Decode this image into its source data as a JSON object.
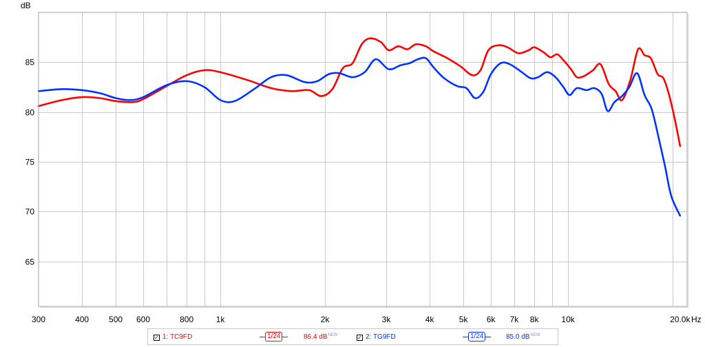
{
  "chart_data": {
    "type": "line",
    "ylabel": "dB",
    "x_unit_label": "Hz",
    "x_scale": "log",
    "xlim": [
      300,
      22000
    ],
    "ylim": [
      60.5,
      90
    ],
    "grid": true,
    "legend_placement": "bottom",
    "x_ticks": [
      {
        "value": 300,
        "label": "300"
      },
      {
        "value": 400,
        "label": "400"
      },
      {
        "value": 500,
        "label": "500"
      },
      {
        "value": 600,
        "label": "600"
      },
      {
        "value": 800,
        "label": "800"
      },
      {
        "value": 1000,
        "label": "1k"
      },
      {
        "value": 2000,
        "label": "2k"
      },
      {
        "value": 3000,
        "label": "3k"
      },
      {
        "value": 4000,
        "label": "4k"
      },
      {
        "value": 5000,
        "label": "5k"
      },
      {
        "value": 6000,
        "label": "6k"
      },
      {
        "value": 7000,
        "label": "7k"
      },
      {
        "value": 8000,
        "label": "8k"
      },
      {
        "value": 10000,
        "label": "10k"
      },
      {
        "value": 20000,
        "label": "20.0k"
      }
    ],
    "x_minor_grid": [
      700,
      900,
      9000
    ],
    "y_ticks": [
      {
        "value": 65,
        "label": "65"
      },
      {
        "value": 70,
        "label": "70"
      },
      {
        "value": 75,
        "label": "75"
      },
      {
        "value": 80,
        "label": "80"
      },
      {
        "value": 85,
        "label": "85"
      }
    ],
    "series": [
      {
        "name": "1: TC9FD",
        "color": "#ff0000",
        "smoothing": "1/24",
        "level": "86.4 dB",
        "level_badge": "NEW",
        "points": [
          [
            300,
            80.6
          ],
          [
            350,
            81.2
          ],
          [
            400,
            81.5
          ],
          [
            450,
            81.4
          ],
          [
            500,
            81.1
          ],
          [
            560,
            81.0
          ],
          [
            600,
            81.3
          ],
          [
            700,
            82.6
          ],
          [
            800,
            83.7
          ],
          [
            900,
            84.2
          ],
          [
            1000,
            84.0
          ],
          [
            1200,
            83.2
          ],
          [
            1400,
            82.4
          ],
          [
            1600,
            82.1
          ],
          [
            1800,
            82.2
          ],
          [
            1950,
            81.6
          ],
          [
            2100,
            82.3
          ],
          [
            2250,
            84.4
          ],
          [
            2400,
            84.9
          ],
          [
            2550,
            86.8
          ],
          [
            2700,
            87.4
          ],
          [
            2900,
            87.0
          ],
          [
            3050,
            86.2
          ],
          [
            3250,
            86.6
          ],
          [
            3450,
            86.3
          ],
          [
            3650,
            86.8
          ],
          [
            3900,
            86.6
          ],
          [
            4100,
            86.1
          ],
          [
            4500,
            85.4
          ],
          [
            4900,
            84.6
          ],
          [
            5300,
            83.7
          ],
          [
            5600,
            84.2
          ],
          [
            5900,
            86.2
          ],
          [
            6300,
            86.7
          ],
          [
            6700,
            86.5
          ],
          [
            7200,
            85.9
          ],
          [
            7700,
            86.2
          ],
          [
            8000,
            86.5
          ],
          [
            8500,
            86.0
          ],
          [
            8900,
            85.5
          ],
          [
            9300,
            85.8
          ],
          [
            9700,
            85.2
          ],
          [
            10200,
            84.3
          ],
          [
            10600,
            83.5
          ],
          [
            11100,
            83.6
          ],
          [
            11800,
            84.2
          ],
          [
            12400,
            84.8
          ],
          [
            13100,
            82.8
          ],
          [
            13700,
            82.1
          ],
          [
            14300,
            81.2
          ],
          [
            15100,
            83.2
          ],
          [
            15900,
            86.3
          ],
          [
            16600,
            85.7
          ],
          [
            17300,
            85.4
          ],
          [
            18100,
            83.8
          ],
          [
            18800,
            83.4
          ],
          [
            19500,
            81.8
          ],
          [
            20300,
            79.2
          ],
          [
            21000,
            76.6
          ]
        ]
      },
      {
        "name": "2: TG9FD",
        "color": "#0033ff",
        "smoothing": "1/24",
        "level": "85.0 dB",
        "level_badge": "NEW",
        "points": [
          [
            300,
            82.1
          ],
          [
            350,
            82.3
          ],
          [
            400,
            82.2
          ],
          [
            450,
            81.9
          ],
          [
            500,
            81.4
          ],
          [
            550,
            81.2
          ],
          [
            600,
            81.5
          ],
          [
            700,
            82.7
          ],
          [
            800,
            83.1
          ],
          [
            900,
            82.5
          ],
          [
            1000,
            81.2
          ],
          [
            1100,
            81.1
          ],
          [
            1250,
            82.3
          ],
          [
            1400,
            83.5
          ],
          [
            1550,
            83.7
          ],
          [
            1750,
            83.0
          ],
          [
            1900,
            83.1
          ],
          [
            2050,
            83.8
          ],
          [
            2200,
            83.9
          ],
          [
            2400,
            83.5
          ],
          [
            2600,
            84.0
          ],
          [
            2800,
            85.3
          ],
          [
            3050,
            84.3
          ],
          [
            3300,
            84.7
          ],
          [
            3500,
            84.9
          ],
          [
            3700,
            85.3
          ],
          [
            3900,
            85.4
          ],
          [
            4100,
            84.5
          ],
          [
            4400,
            83.4
          ],
          [
            4800,
            82.6
          ],
          [
            5100,
            82.4
          ],
          [
            5400,
            81.4
          ],
          [
            5700,
            82.0
          ],
          [
            6000,
            83.8
          ],
          [
            6400,
            84.9
          ],
          [
            6800,
            84.8
          ],
          [
            7300,
            84.1
          ],
          [
            7800,
            83.4
          ],
          [
            8200,
            83.5
          ],
          [
            8700,
            84.0
          ],
          [
            9200,
            83.5
          ],
          [
            9700,
            82.5
          ],
          [
            10100,
            81.7
          ],
          [
            10600,
            82.4
          ],
          [
            11300,
            82.2
          ],
          [
            11900,
            82.4
          ],
          [
            12500,
            81.8
          ],
          [
            13000,
            80.1
          ],
          [
            13600,
            81.0
          ],
          [
            14300,
            81.6
          ],
          [
            15000,
            82.5
          ],
          [
            15800,
            83.9
          ],
          [
            16600,
            81.7
          ],
          [
            17400,
            80.3
          ],
          [
            18200,
            77.5
          ],
          [
            19000,
            74.6
          ],
          [
            19800,
            71.6
          ],
          [
            21000,
            69.6
          ]
        ]
      }
    ]
  }
}
